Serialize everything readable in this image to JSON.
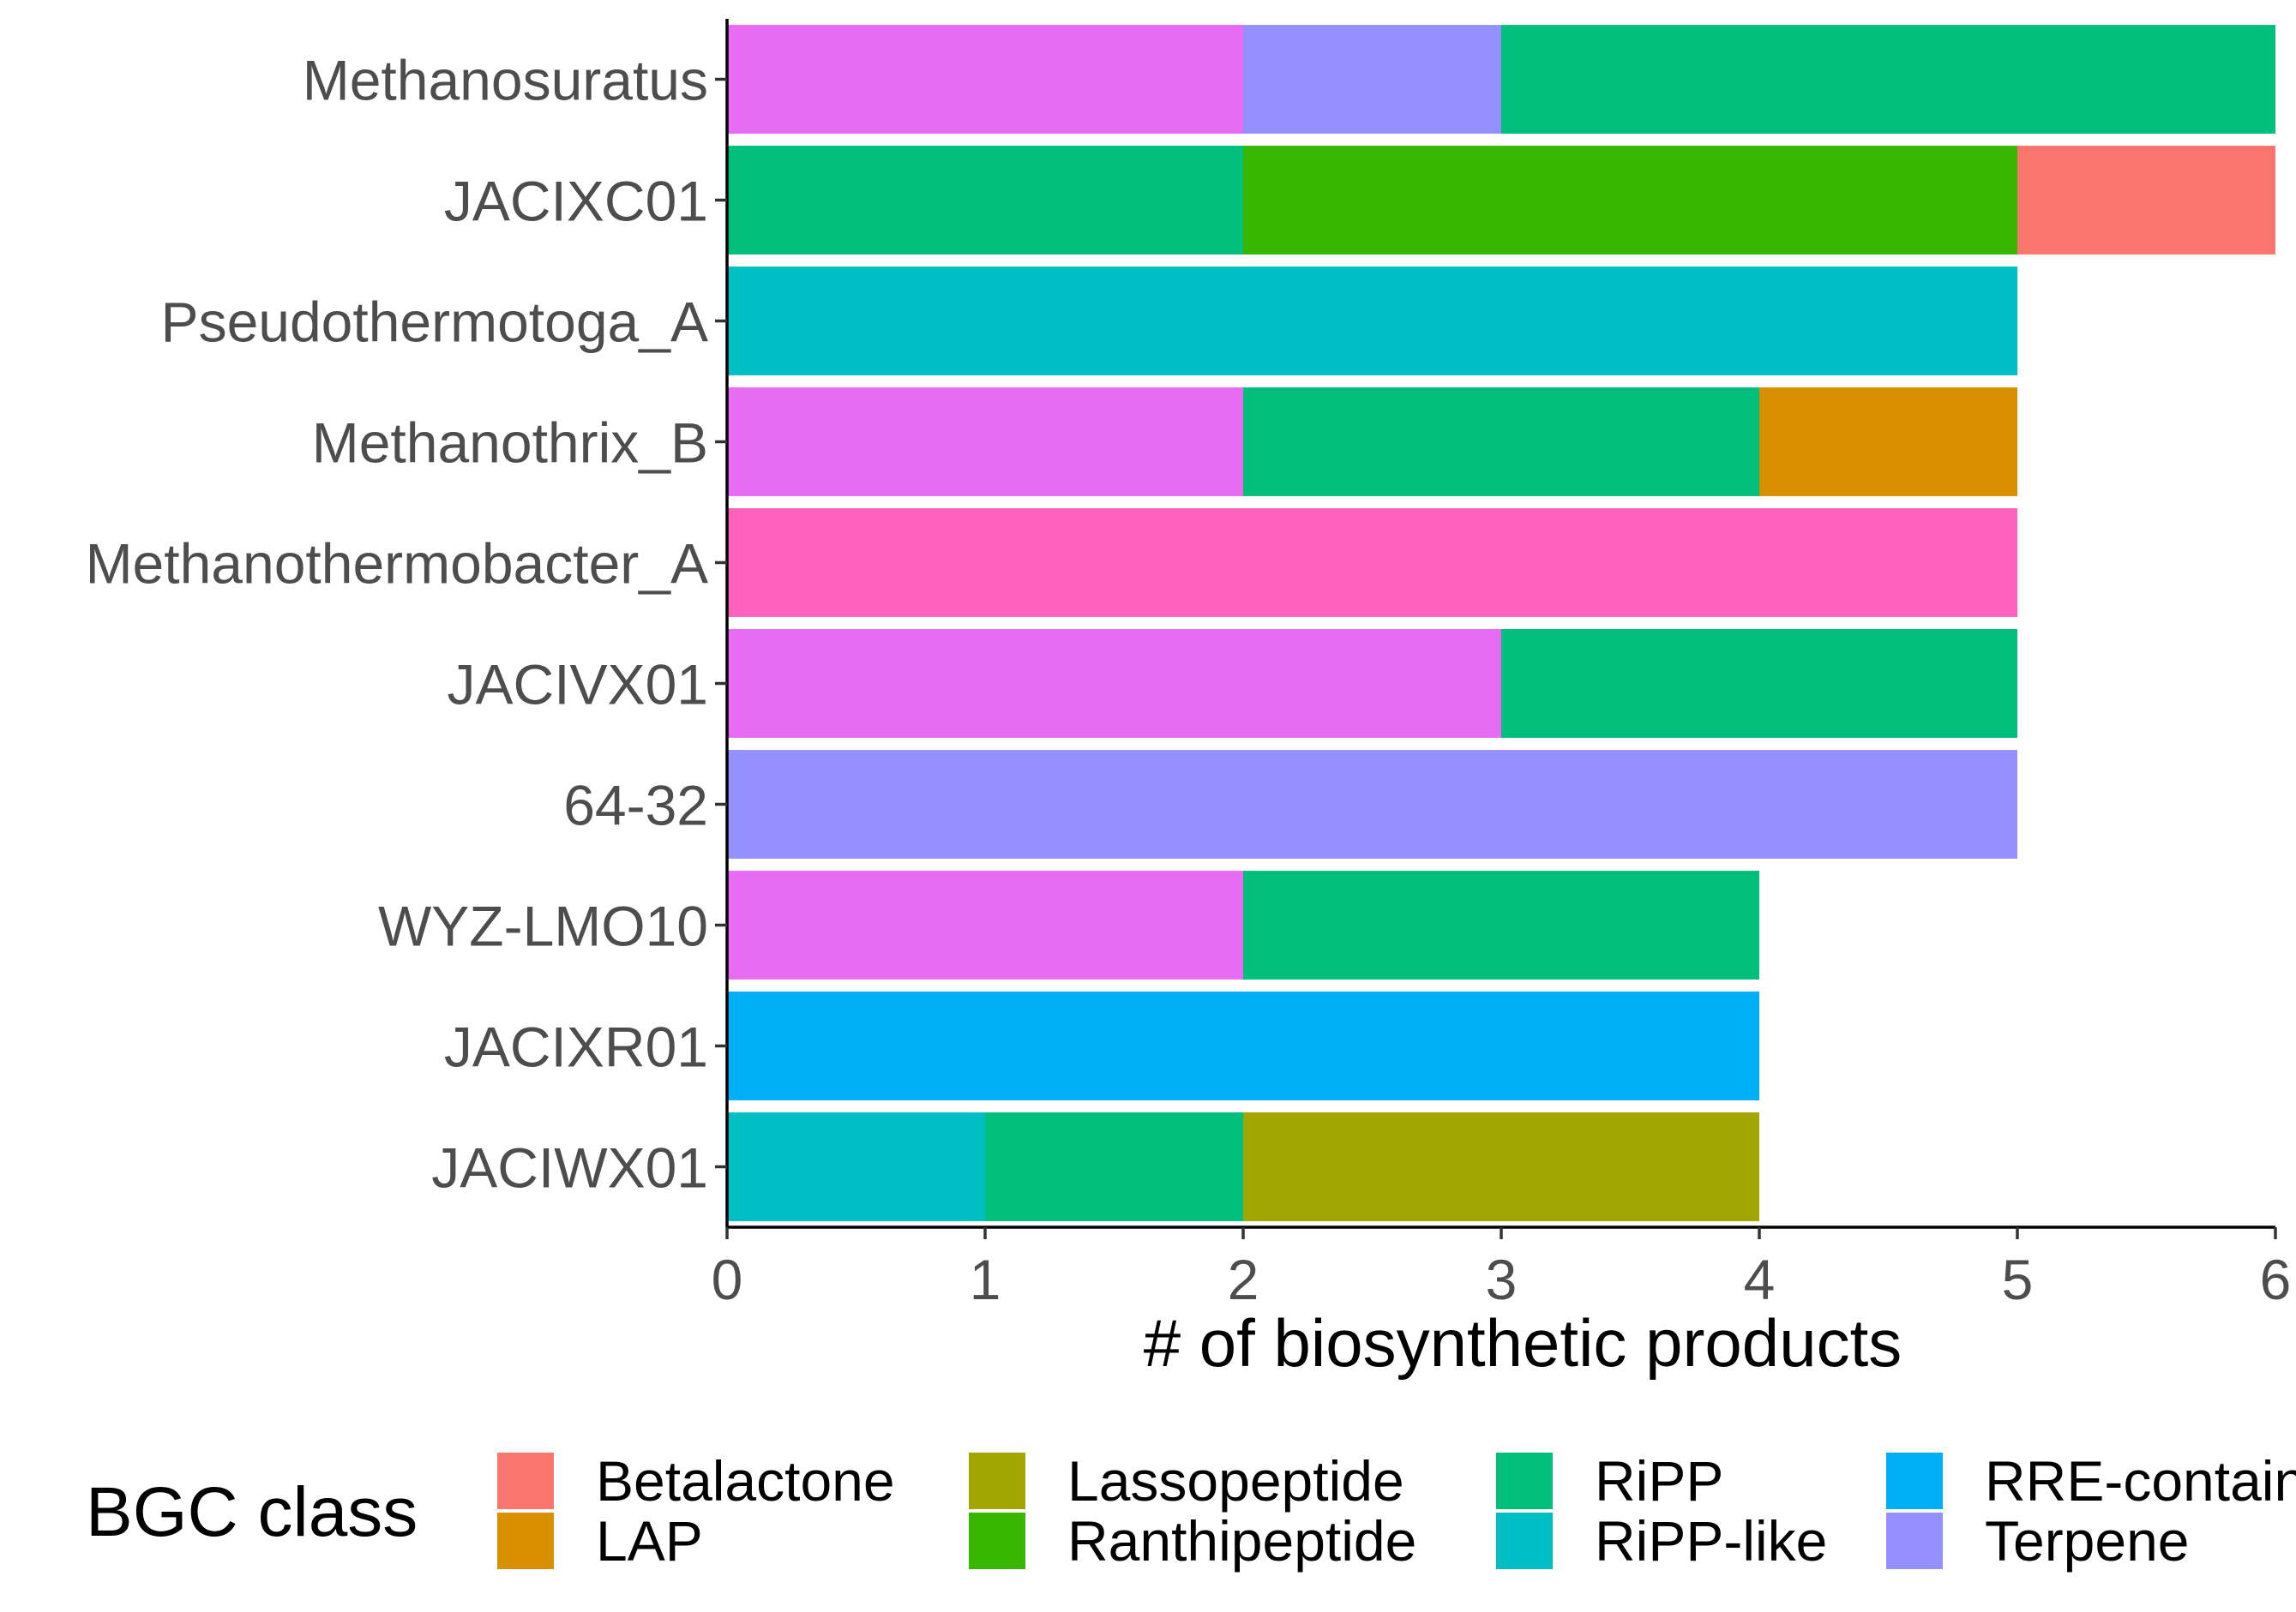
{
  "chart_data": {
    "type": "bar",
    "orientation": "horizontal",
    "stacked": true,
    "xlabel": "# of biosynthetic products",
    "ylabel": "",
    "xlim": [
      0,
      6
    ],
    "x_ticks": [
      0,
      1,
      2,
      3,
      4,
      5,
      6
    ],
    "grid": false,
    "categories": [
      "Methanosuratus",
      "JACIXC01",
      "Pseudothermotoga_A",
      "Methanothrix_B",
      "Methanothermobacter_A",
      "JACIVX01",
      "64-32",
      "WYZ-LMO10",
      "JACIXR01",
      "JACIWX01"
    ],
    "series": [
      {
        "name": "Betalactone",
        "color": "#F8766D",
        "values": [
          0,
          1,
          0,
          0,
          0,
          0,
          0,
          0,
          0,
          0
        ]
      },
      {
        "name": "LAP",
        "color": "#D89000",
        "values": [
          0,
          0,
          0,
          1,
          0,
          0,
          0,
          0,
          0,
          0
        ]
      },
      {
        "name": "Lassopeptide",
        "color": "#A3A500",
        "values": [
          0,
          0,
          0,
          0,
          0,
          0,
          0,
          0,
          0,
          2
        ]
      },
      {
        "name": "Ranthipeptide",
        "color": "#39B600",
        "values": [
          0,
          3,
          0,
          0,
          0,
          0,
          0,
          0,
          0,
          0
        ]
      },
      {
        "name": "RiPP",
        "color": "#00BF7D",
        "values": [
          3,
          2,
          0,
          2,
          0,
          2,
          0,
          2,
          0,
          1
        ]
      },
      {
        "name": "RiPP-like",
        "color": "#00BFC4",
        "values": [
          0,
          0,
          5,
          0,
          0,
          0,
          0,
          0,
          0,
          1
        ]
      },
      {
        "name": "RRE-containing",
        "color": "#00B0F6",
        "values": [
          0,
          0,
          0,
          0,
          0,
          0,
          0,
          0,
          4,
          0
        ]
      },
      {
        "name": "Terpene",
        "color": "#9590FF",
        "values": [
          1,
          0,
          0,
          0,
          0,
          0,
          5,
          0,
          0,
          0
        ]
      },
      {
        "name": "other-magenta",
        "color": "#E76BF3",
        "values": [
          2,
          0,
          0,
          2,
          0,
          3,
          0,
          2,
          0,
          0
        ]
      },
      {
        "name": "other-pink",
        "color": "#FF62BC",
        "values": [
          0,
          0,
          0,
          0,
          5,
          0,
          0,
          0,
          0,
          0
        ]
      }
    ],
    "stack_order": [
      [
        "other-magenta",
        "Terpene",
        "RiPP"
      ],
      [
        "RiPP",
        "Ranthipeptide",
        "Betalactone"
      ],
      [
        "RiPP-like"
      ],
      [
        "other-magenta",
        "RiPP",
        "LAP"
      ],
      [
        "other-pink"
      ],
      [
        "other-magenta",
        "RiPP"
      ],
      [
        "Terpene"
      ],
      [
        "other-magenta",
        "RiPP"
      ],
      [
        "RRE-containing"
      ],
      [
        "RiPP-like",
        "RiPP",
        "Lassopeptide"
      ]
    ],
    "legend": {
      "title": "BGC class",
      "position": "bottom",
      "items": [
        {
          "label": "Betalactone",
          "color": "#F8766D"
        },
        {
          "label": "LAP",
          "color": "#D89000"
        },
        {
          "label": "Lassopeptide",
          "color": "#A3A500"
        },
        {
          "label": "Ranthipeptide",
          "color": "#39B600"
        },
        {
          "label": "RiPP",
          "color": "#00BF7D"
        },
        {
          "label": "RiPP-like",
          "color": "#00BFC4"
        },
        {
          "label": "RRE-containing",
          "color": "#00B0F6"
        },
        {
          "label": "Terpene",
          "color": "#9590FF"
        }
      ]
    }
  }
}
